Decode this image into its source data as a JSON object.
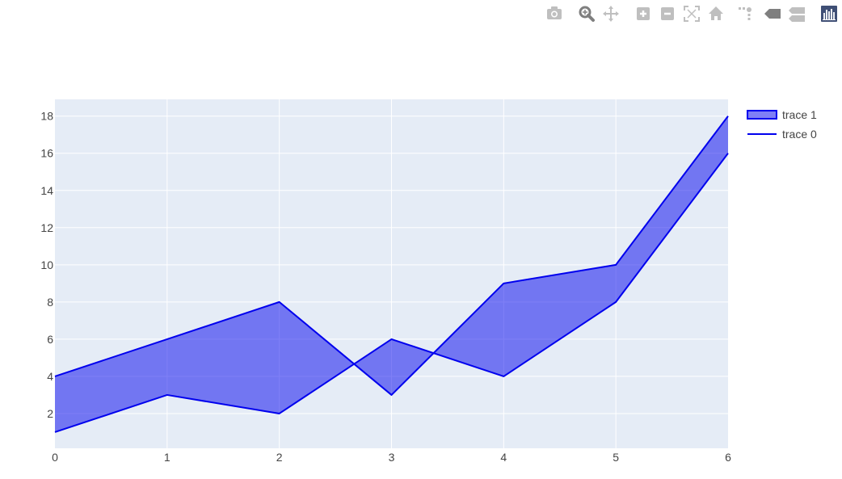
{
  "modebar": {
    "buttons": [
      {
        "name": "camera-icon",
        "title": "Download plot as a png"
      },
      {
        "name": "zoom-icon",
        "title": "Zoom",
        "active": true
      },
      {
        "name": "pan-icon",
        "title": "Pan"
      },
      {
        "name": "zoom-in-icon",
        "title": "Zoom in"
      },
      {
        "name": "zoom-out-icon",
        "title": "Zoom out"
      },
      {
        "name": "autoscale-icon",
        "title": "Autoscale"
      },
      {
        "name": "home-icon",
        "title": "Reset axes"
      },
      {
        "name": "spike-lines-icon",
        "title": "Toggle Spike Lines"
      },
      {
        "name": "hover-closest-icon",
        "title": "Show closest data on hover"
      },
      {
        "name": "hover-compare-icon",
        "title": "Compare data on hover"
      },
      {
        "name": "plotly-logo-icon",
        "title": "Produced with Plotly"
      }
    ]
  },
  "colors": {
    "plot_bg": "#e5ecf6",
    "grid": "#ffffff",
    "line": "#0000ee",
    "fill": "rgba(0,0,238,0.5)",
    "modebar_icon": "#bfbfbf",
    "modebar_active": "#7f7f7f",
    "logo_bg": "#3f4f75"
  },
  "chart_data": {
    "type": "area",
    "x": [
      0,
      1,
      2,
      3,
      4,
      5,
      6
    ],
    "series": [
      {
        "name": "trace 0",
        "values": [
          1,
          3,
          2,
          6,
          4,
          8,
          16
        ],
        "fill": "none"
      },
      {
        "name": "trace 1",
        "values": [
          4,
          6,
          8,
          3,
          9,
          10,
          18
        ],
        "fill": "tonexty"
      }
    ],
    "title": "",
    "xlabel": "",
    "ylabel": "",
    "xlim": [
      0,
      6
    ],
    "ylim": [
      0.13,
      18.9
    ],
    "xticks": [
      0,
      1,
      2,
      3,
      4,
      5,
      6
    ],
    "yticks": [
      2,
      4,
      6,
      8,
      10,
      12,
      14,
      16,
      18
    ],
    "grid": true,
    "legend_position": "top-right",
    "legend_order": [
      "trace 1",
      "trace 0"
    ]
  }
}
